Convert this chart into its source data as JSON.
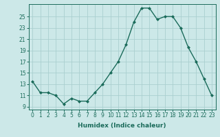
{
  "x": [
    0,
    1,
    2,
    3,
    4,
    5,
    6,
    7,
    8,
    9,
    10,
    11,
    12,
    13,
    14,
    15,
    16,
    17,
    18,
    19,
    20,
    21,
    22,
    23
  ],
  "y": [
    13.5,
    11.5,
    11.5,
    11.0,
    9.5,
    10.5,
    10.0,
    10.0,
    11.5,
    13.0,
    15.0,
    17.0,
    20.0,
    24.0,
    26.5,
    26.5,
    24.5,
    25.0,
    25.0,
    23.0,
    19.5,
    17.0,
    14.0,
    11.0
  ],
  "line_color": "#1a6b5a",
  "marker": "D",
  "marker_size": 2.0,
  "bg_color": "#cce8e8",
  "grid_color": "#aacfcf",
  "xlabel": "Humidex (Indice chaleur)",
  "xlim": [
    -0.5,
    23.5
  ],
  "ylim": [
    8.5,
    27.2
  ],
  "yticks": [
    9,
    11,
    13,
    15,
    17,
    19,
    21,
    23,
    25
  ],
  "xticks": [
    0,
    1,
    2,
    3,
    4,
    5,
    6,
    7,
    8,
    9,
    10,
    11,
    12,
    13,
    14,
    15,
    16,
    17,
    18,
    19,
    20,
    21,
    22,
    23
  ],
  "tick_color": "#1a6b5a",
  "tick_fontsize": 5.5,
  "xlabel_fontsize": 6.5,
  "linewidth": 1.0
}
